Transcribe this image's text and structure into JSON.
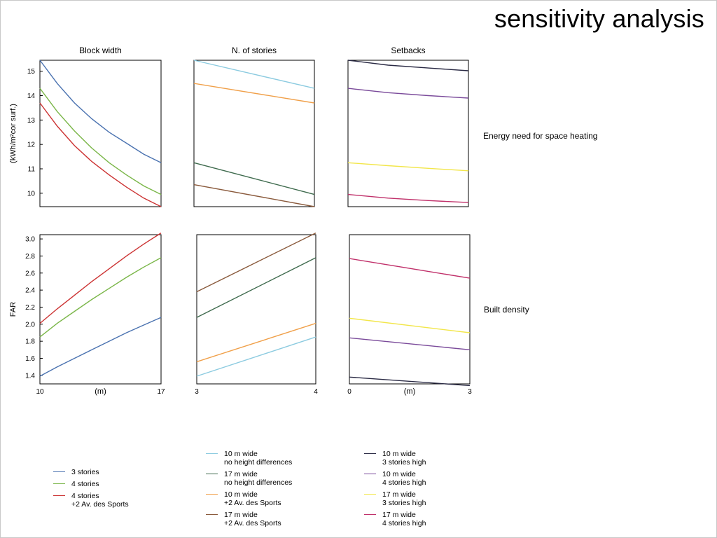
{
  "slide": {
    "title": "sensitivity analysis"
  },
  "row_labels": {
    "top": "Energy need for space heating",
    "bottom": "Built density"
  },
  "colors": {
    "blue": "#4a72b0",
    "green": "#7ab648",
    "red": "#cc3333",
    "lightblue": "#8ccbe0",
    "darkgreen": "#3f6b4e",
    "orange": "#f0a04a",
    "brown": "#8a5a3c",
    "navy": "#2a2a44",
    "purple": "#7a4a9a",
    "yellow": "#f2e64a",
    "magenta": "#c0306a"
  },
  "chart_data": [
    {
      "type": "line",
      "title": "Block width",
      "ylabel": "(kWh/m²cor surf.)",
      "xlabel": "",
      "ylim": [
        9.45,
        15.45
      ],
      "xlim": [
        10,
        17
      ],
      "yticks": [
        10,
        11,
        12,
        13,
        14,
        15
      ],
      "xticks": [],
      "grid": false,
      "series": [
        {
          "name": "3 stories",
          "color": "#4a72b0",
          "x": [
            10,
            11,
            12,
            13,
            14,
            15,
            16,
            17
          ],
          "values": [
            15.45,
            14.5,
            13.7,
            13.05,
            12.5,
            12.05,
            11.6,
            11.25
          ]
        },
        {
          "name": "4 stories",
          "color": "#7ab648",
          "x": [
            10,
            11,
            12,
            13,
            14,
            15,
            16,
            17
          ],
          "values": [
            14.3,
            13.35,
            12.55,
            11.85,
            11.25,
            10.75,
            10.3,
            9.95
          ]
        },
        {
          "name": "4 stories +2 Av. des Sports",
          "color": "#cc3333",
          "x": [
            10,
            11,
            12,
            13,
            14,
            15,
            16,
            17
          ],
          "values": [
            13.7,
            12.75,
            11.95,
            11.3,
            10.75,
            10.25,
            9.8,
            9.45
          ]
        }
      ]
    },
    {
      "type": "line",
      "title": "N. of stories",
      "ylabel": "",
      "xlabel": "",
      "ylim": [
        9.45,
        15.45
      ],
      "xlim": [
        3,
        4
      ],
      "yticks": [],
      "xticks": [],
      "grid": false,
      "series": [
        {
          "name": "10 m wide no height differences",
          "color": "#8ccbe0",
          "x": [
            3,
            4
          ],
          "values": [
            15.45,
            14.3
          ]
        },
        {
          "name": "10 m wide +2 Av. des Sports",
          "color": "#f0a04a",
          "x": [
            3,
            4
          ],
          "values": [
            14.5,
            13.7
          ]
        },
        {
          "name": "17 m wide no height differences",
          "color": "#3f6b4e",
          "x": [
            3,
            4
          ],
          "values": [
            11.25,
            9.95
          ]
        },
        {
          "name": "17 m wide +2 Av. des Sports",
          "color": "#8a5a3c",
          "x": [
            3,
            4
          ],
          "values": [
            10.35,
            9.45
          ]
        }
      ]
    },
    {
      "type": "line",
      "title": "Setbacks",
      "ylabel": "",
      "xlabel": "",
      "ylim": [
        9.45,
        15.45
      ],
      "xlim": [
        0,
        3
      ],
      "yticks": [],
      "xticks": [],
      "grid": false,
      "series": [
        {
          "name": "10 m wide 3 stories high",
          "color": "#2a2a44",
          "x": [
            0,
            1,
            2,
            3
          ],
          "values": [
            15.45,
            15.25,
            15.13,
            15.02
          ]
        },
        {
          "name": "10 m wide 4 stories high",
          "color": "#7a4a9a",
          "x": [
            0,
            1,
            2,
            3
          ],
          "values": [
            14.3,
            14.12,
            14.0,
            13.9
          ]
        },
        {
          "name": "17 m wide 3 stories high",
          "color": "#f2e64a",
          "x": [
            0,
            1,
            2,
            3
          ],
          "values": [
            11.25,
            11.13,
            11.02,
            10.92
          ]
        },
        {
          "name": "17 m wide 4 stories high",
          "color": "#c0306a",
          "x": [
            0,
            1,
            2,
            3
          ],
          "values": [
            9.95,
            9.8,
            9.7,
            9.62
          ]
        }
      ]
    },
    {
      "type": "line",
      "title": "",
      "ylabel": "FAR",
      "xlabel": "(m)",
      "ylim": [
        1.3,
        3.05
      ],
      "xlim": [
        10,
        17
      ],
      "yticks": [
        1.4,
        1.6,
        1.8,
        2.0,
        2.2,
        2.4,
        2.6,
        2.8,
        3.0
      ],
      "xticks": [
        10,
        17
      ],
      "grid": false,
      "series": [
        {
          "name": "3 stories",
          "color": "#4a72b0",
          "x": [
            10,
            11,
            12,
            13,
            14,
            15,
            16,
            17
          ],
          "values": [
            1.39,
            1.5,
            1.6,
            1.7,
            1.8,
            1.9,
            1.99,
            2.08
          ]
        },
        {
          "name": "4 stories",
          "color": "#7ab648",
          "x": [
            10,
            11,
            12,
            13,
            14,
            15,
            16,
            17
          ],
          "values": [
            1.85,
            2.01,
            2.15,
            2.29,
            2.42,
            2.55,
            2.67,
            2.78
          ]
        },
        {
          "name": "4 stories +2 Av. des Sports",
          "color": "#cc3333",
          "x": [
            10,
            11,
            12,
            13,
            14,
            15,
            16,
            17
          ],
          "values": [
            2.01,
            2.18,
            2.34,
            2.5,
            2.65,
            2.8,
            2.94,
            3.07
          ]
        }
      ]
    },
    {
      "type": "line",
      "title": "",
      "ylabel": "",
      "xlabel": "",
      "ylim": [
        1.3,
        3.05
      ],
      "xlim": [
        3,
        4
      ],
      "yticks": [],
      "xticks": [
        3,
        4
      ],
      "grid": false,
      "series": [
        {
          "name": "10 m wide no height differences",
          "color": "#8ccbe0",
          "x": [
            3,
            4
          ],
          "values": [
            1.39,
            1.85
          ]
        },
        {
          "name": "10 m wide +2 Av. des Sports",
          "color": "#f0a04a",
          "x": [
            3,
            4
          ],
          "values": [
            1.56,
            2.01
          ]
        },
        {
          "name": "17 m wide no height differences",
          "color": "#3f6b4e",
          "x": [
            3,
            4
          ],
          "values": [
            2.08,
            2.78
          ]
        },
        {
          "name": "17 m wide +2 Av. des Sports",
          "color": "#8a5a3c",
          "x": [
            3,
            4
          ],
          "values": [
            2.38,
            3.07
          ]
        }
      ]
    },
    {
      "type": "line",
      "title": "",
      "ylabel": "",
      "xlabel": "(m)",
      "ylim": [
        1.3,
        3.05
      ],
      "xlim": [
        0,
        3
      ],
      "yticks": [],
      "xticks": [
        0,
        3
      ],
      "grid": false,
      "series": [
        {
          "name": "10 m wide 3 stories high",
          "color": "#2a2a44",
          "x": [
            0,
            3
          ],
          "values": [
            1.38,
            1.28
          ]
        },
        {
          "name": "10 m wide 4 stories high",
          "color": "#7a4a9a",
          "x": [
            0,
            3
          ],
          "values": [
            1.84,
            1.7
          ]
        },
        {
          "name": "17 m wide 3 stories high",
          "color": "#f2e64a",
          "x": [
            0,
            3
          ],
          "values": [
            2.07,
            1.9
          ]
        },
        {
          "name": "17 m wide 4 stories high",
          "color": "#c0306a",
          "x": [
            0,
            3
          ],
          "values": [
            2.77,
            2.54
          ]
        }
      ]
    }
  ],
  "legends": [
    {
      "items": [
        {
          "label": "3 stories",
          "color": "#4a72b0"
        },
        {
          "label": "4 stories",
          "color": "#7ab648"
        },
        {
          "label": "4 stories\n+2 Av. des Sports",
          "color": "#cc3333"
        }
      ]
    },
    {
      "items": [
        {
          "label": "10 m wide\nno height differences",
          "color": "#8ccbe0"
        },
        {
          "label": "17 m wide\nno height differences",
          "color": "#3f6b4e"
        },
        {
          "label": "10 m wide\n+2 Av. des Sports",
          "color": "#f0a04a"
        },
        {
          "label": "17 m wide\n+2 Av. des Sports",
          "color": "#8a5a3c"
        }
      ]
    },
    {
      "items": [
        {
          "label": "10 m wide\n3 stories high",
          "color": "#2a2a44"
        },
        {
          "label": "10 m wide\n4 stories high",
          "color": "#7a4a9a"
        },
        {
          "label": "17 m wide\n3 stories high",
          "color": "#f2e64a"
        },
        {
          "label": "17 m wide\n4 stories high",
          "color": "#c0306a"
        }
      ]
    }
  ]
}
